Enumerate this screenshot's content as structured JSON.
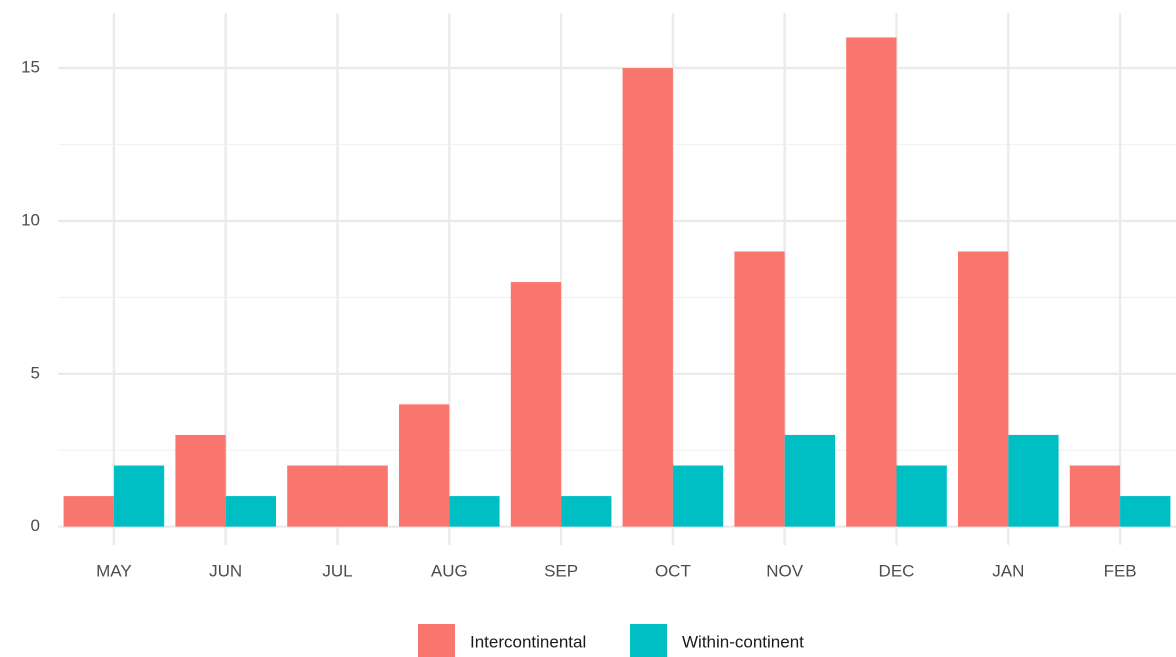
{
  "chart_data": {
    "type": "bar",
    "categories": [
      "MAY",
      "JUN",
      "JUL",
      "AUG",
      "SEP",
      "OCT",
      "NOV",
      "DEC",
      "JAN",
      "FEB"
    ],
    "series": [
      {
        "name": "Intercontinental",
        "color": "#F8766D",
        "values": [
          1,
          3,
          2,
          4,
          8,
          15,
          9,
          16,
          9,
          2
        ]
      },
      {
        "name": "Within-continent",
        "color": "#00BFC4",
        "values": [
          2,
          1,
          null,
          1,
          1,
          2,
          3,
          2,
          3,
          1
        ]
      }
    ],
    "ylim": [
      -0.6,
      16.8
    ],
    "yticks": [
      0,
      5,
      10,
      15
    ],
    "yticks_minor": [
      2.5,
      7.5,
      12.5
    ],
    "grid": true,
    "legend": "bottom"
  }
}
